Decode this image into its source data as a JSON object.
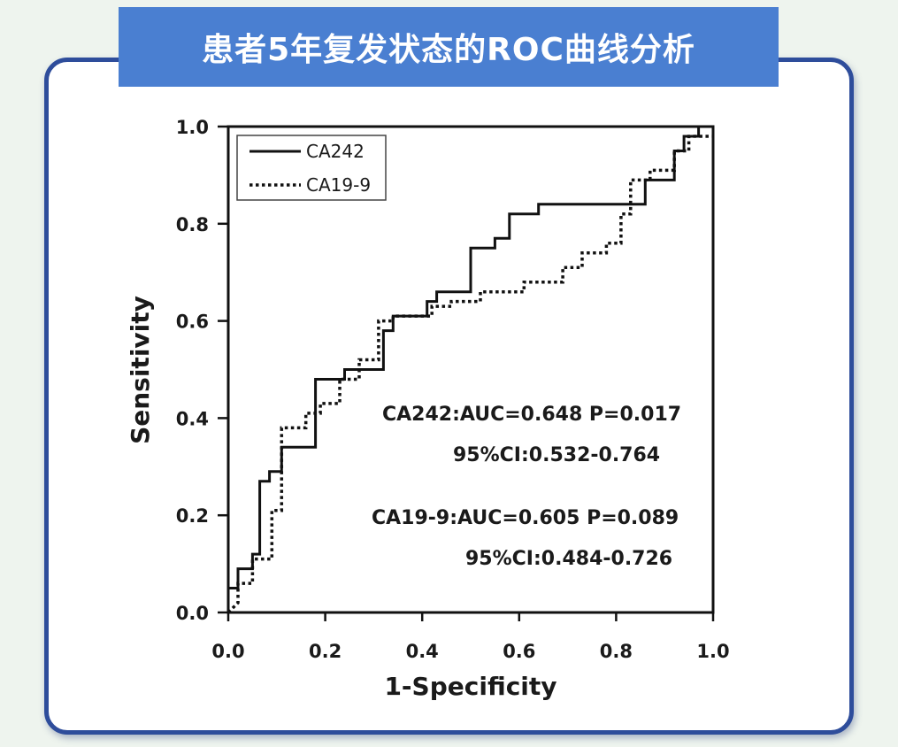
{
  "banner": {
    "title": "患者5年复发状态的ROC曲线分析"
  },
  "colors": {
    "banner_bg": "#4a7fd1",
    "card_border": "#2e4d9b",
    "line": "#111111"
  },
  "chart_data": {
    "type": "line",
    "title": "",
    "xlabel": "1-Specificity",
    "ylabel": "Sensitivity",
    "xlim": [
      0,
      1
    ],
    "ylim": [
      0,
      1
    ],
    "x_ticks": [
      "0.0",
      "0.2",
      "0.4",
      "0.6",
      "0.8",
      "1.0"
    ],
    "y_ticks": [
      "0.0",
      "0.2",
      "0.4",
      "0.6",
      "0.8",
      "1.0"
    ],
    "grid": false,
    "legend_position": "top-left",
    "series": [
      {
        "name": "CA242",
        "style": "solid",
        "points": [
          [
            0,
            0
          ],
          [
            0,
            0.05
          ],
          [
            0.02,
            0.05
          ],
          [
            0.02,
            0.09
          ],
          [
            0.05,
            0.09
          ],
          [
            0.05,
            0.12
          ],
          [
            0.065,
            0.12
          ],
          [
            0.065,
            0.27
          ],
          [
            0.085,
            0.27
          ],
          [
            0.085,
            0.29
          ],
          [
            0.11,
            0.29
          ],
          [
            0.11,
            0.34
          ],
          [
            0.18,
            0.34
          ],
          [
            0.18,
            0.48
          ],
          [
            0.24,
            0.48
          ],
          [
            0.24,
            0.5
          ],
          [
            0.32,
            0.5
          ],
          [
            0.32,
            0.58
          ],
          [
            0.34,
            0.58
          ],
          [
            0.34,
            0.61
          ],
          [
            0.41,
            0.61
          ],
          [
            0.41,
            0.64
          ],
          [
            0.43,
            0.64
          ],
          [
            0.43,
            0.66
          ],
          [
            0.5,
            0.66
          ],
          [
            0.5,
            0.75
          ],
          [
            0.55,
            0.75
          ],
          [
            0.55,
            0.77
          ],
          [
            0.58,
            0.77
          ],
          [
            0.58,
            0.82
          ],
          [
            0.64,
            0.82
          ],
          [
            0.64,
            0.84
          ],
          [
            0.86,
            0.84
          ],
          [
            0.86,
            0.89
          ],
          [
            0.92,
            0.89
          ],
          [
            0.92,
            0.95
          ],
          [
            0.94,
            0.95
          ],
          [
            0.94,
            0.98
          ],
          [
            0.97,
            0.98
          ],
          [
            0.97,
            1.0
          ],
          [
            1.0,
            1.0
          ]
        ]
      },
      {
        "name": "CA19-9",
        "style": "dotted",
        "points": [
          [
            0,
            0
          ],
          [
            0.02,
            0.02
          ],
          [
            0.02,
            0.06
          ],
          [
            0.05,
            0.06
          ],
          [
            0.05,
            0.11
          ],
          [
            0.09,
            0.11
          ],
          [
            0.09,
            0.21
          ],
          [
            0.11,
            0.21
          ],
          [
            0.11,
            0.38
          ],
          [
            0.16,
            0.38
          ],
          [
            0.16,
            0.41
          ],
          [
            0.19,
            0.41
          ],
          [
            0.19,
            0.43
          ],
          [
            0.23,
            0.43
          ],
          [
            0.23,
            0.48
          ],
          [
            0.27,
            0.48
          ],
          [
            0.27,
            0.52
          ],
          [
            0.31,
            0.52
          ],
          [
            0.31,
            0.6
          ],
          [
            0.34,
            0.6
          ],
          [
            0.34,
            0.61
          ],
          [
            0.42,
            0.61
          ],
          [
            0.42,
            0.63
          ],
          [
            0.46,
            0.63
          ],
          [
            0.46,
            0.64
          ],
          [
            0.52,
            0.64
          ],
          [
            0.52,
            0.66
          ],
          [
            0.61,
            0.66
          ],
          [
            0.61,
            0.68
          ],
          [
            0.69,
            0.68
          ],
          [
            0.69,
            0.71
          ],
          [
            0.73,
            0.71
          ],
          [
            0.73,
            0.74
          ],
          [
            0.78,
            0.74
          ],
          [
            0.78,
            0.76
          ],
          [
            0.81,
            0.76
          ],
          [
            0.81,
            0.82
          ],
          [
            0.83,
            0.82
          ],
          [
            0.83,
            0.89
          ],
          [
            0.87,
            0.89
          ],
          [
            0.87,
            0.91
          ],
          [
            0.92,
            0.91
          ],
          [
            0.92,
            0.95
          ],
          [
            0.95,
            0.95
          ],
          [
            0.95,
            0.98
          ],
          [
            1.0,
            0.98
          ]
        ]
      }
    ],
    "annotations": [
      "CA242:AUC=0.648 P=0.017",
      "95%CI:0.532-0.764",
      "CA19-9:AUC=0.605 P=0.089",
      "95%CI:0.484-0.726"
    ]
  }
}
